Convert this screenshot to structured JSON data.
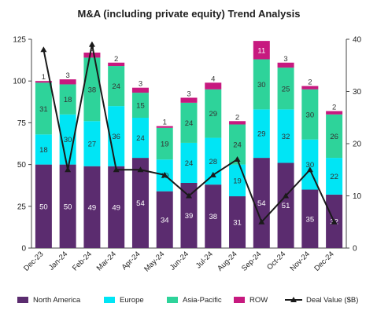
{
  "chart_data": {
    "type": "bar",
    "stacked": true,
    "title": "M&A (including private equity) Trend Analysis",
    "categories": [
      "Dec-23",
      "Jan-24",
      "Feb-24",
      "Mar-24",
      "Apr-24",
      "May-24",
      "Jun-24",
      "Jul-24",
      "Aug-24",
      "Sep-24",
      "Oct-24",
      "Nov-24",
      "Dec-24"
    ],
    "series": [
      {
        "name": "North America",
        "color": "#5b2c6f",
        "label_color": "#ffffff",
        "values": [
          50,
          50,
          49,
          49,
          54,
          34,
          39,
          38,
          31,
          54,
          51,
          35,
          32
        ]
      },
      {
        "name": "Europe",
        "color": "#00e5f5",
        "label_color": "#333333",
        "values": [
          18,
          30,
          27,
          36,
          24,
          19,
          24,
          28,
          19,
          29,
          32,
          30,
          22
        ]
      },
      {
        "name": "Asia-Pacific",
        "color": "#2ed39a",
        "label_color": "#333333",
        "values": [
          31,
          18,
          38,
          24,
          15,
          19,
          24,
          29,
          24,
          30,
          25,
          30,
          26
        ]
      },
      {
        "name": "ROW",
        "color": "#c7197f",
        "label_color": "#ffffff",
        "values": [
          1,
          3,
          3,
          2,
          3,
          1,
          3,
          4,
          2,
          11,
          3,
          2,
          2
        ]
      }
    ],
    "line_series": {
      "name": "Deal Value ($B)",
      "color": "#1a1a1a",
      "axis": "right",
      "values": [
        38,
        15,
        39,
        15,
        15,
        14,
        10,
        14,
        17,
        5,
        10,
        15,
        5
      ]
    },
    "y_left": {
      "min": 0,
      "max": 125,
      "ticks": [
        0,
        25,
        50,
        75,
        100,
        125
      ]
    },
    "y_right": {
      "min": 0,
      "max": 40,
      "ticks": [
        0,
        10,
        20,
        30,
        40
      ]
    },
    "grid": false,
    "legend_position": "bottom"
  }
}
